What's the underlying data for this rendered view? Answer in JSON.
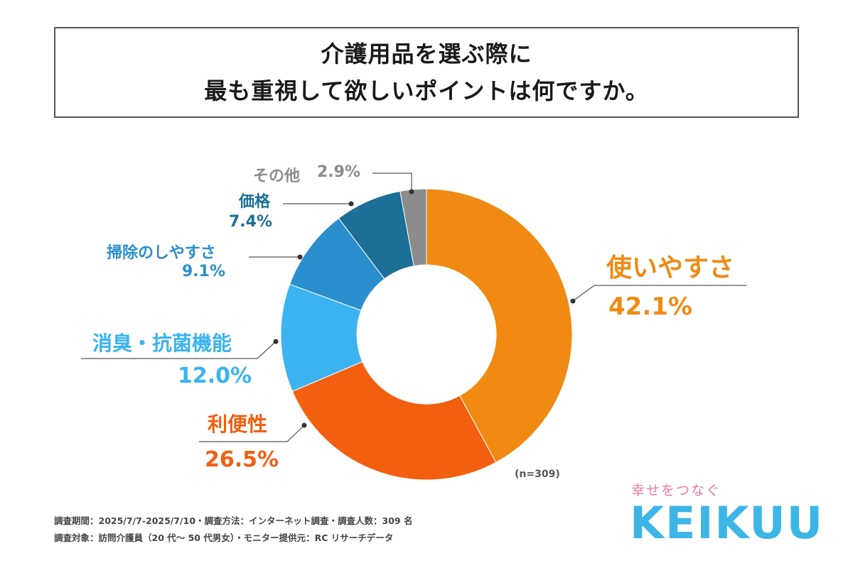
{
  "title": {
    "line1": "介護用品を選ぶ際に",
    "line2": "最も重視して欲しいポイントは何ですか。"
  },
  "chart_data": {
    "type": "pie",
    "slices": [
      {
        "name": "使いやすさ",
        "value": 42.1,
        "label": "42.1%",
        "color": "#f08a12"
      },
      {
        "name": "利便性",
        "value": 26.5,
        "label": "26.5%",
        "color": "#f2600f"
      },
      {
        "name": "消臭・抗菌機能",
        "value": 12.0,
        "label": "12.0%",
        "color": "#3ab3f0"
      },
      {
        "name": "掃除のしやすさ",
        "value": 9.1,
        "label": "9.1%",
        "color": "#2a8fcc"
      },
      {
        "name": "価格",
        "value": 7.4,
        "label": "7.4%",
        "color": "#1c6f96"
      },
      {
        "name": "その他",
        "value": 2.9,
        "label": "2.9%",
        "color": "#8c8c8c"
      }
    ],
    "note": "(n=309)"
  },
  "labels": {
    "tsukaiyasusa_name": "使いやすさ",
    "tsukaiyasusa_value": "42.1%",
    "benri_name": "利便性",
    "benri_value": "26.5%",
    "shoshu_name": "消臭・抗菌機能",
    "shoshu_value": "12.0%",
    "souji_name": "掃除のしやすさ",
    "souji_value": "9.1%",
    "kakaku_name": "価格",
    "kakaku_value": "7.4%",
    "sonota_name": "その他",
    "sonota_value": "2.9%"
  },
  "footnotes": {
    "line1": "調査期間：2025/7/7-2025/7/10・調査方法：インターネット調査・調査人数：309 名",
    "line2": "調査対象：訪問介護員（20 代～ 50 代男女）・モニター提供元：RC リサーチデータ"
  },
  "logo": {
    "tagline": "幸せをつなぐ",
    "name": "KEIKUU"
  }
}
